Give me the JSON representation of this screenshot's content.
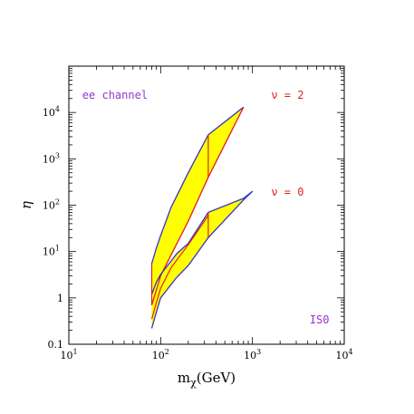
{
  "chart_data": {
    "type": "area",
    "xscale": "log",
    "yscale": "log",
    "xlim": [
      10,
      10000
    ],
    "ylim": [
      0.1,
      100000
    ],
    "xlabel": "m",
    "xlabel_sub": "χ",
    "xlabel_unit": "(GeV)",
    "ylabel": "η",
    "x_tick_labels": [
      {
        "value": 10,
        "base": "10",
        "exp": "1"
      },
      {
        "value": 100,
        "base": "10",
        "exp": "2"
      },
      {
        "value": 1000,
        "base": "10",
        "exp": "3"
      },
      {
        "value": 10000,
        "base": "10",
        "exp": "4"
      }
    ],
    "y_tick_labels": [
      {
        "value": 0.1,
        "base": "0.1",
        "exp": ""
      },
      {
        "value": 1,
        "base": "1",
        "exp": ""
      },
      {
        "value": 10,
        "base": "10",
        "exp": "1"
      },
      {
        "value": 100,
        "base": "10",
        "exp": "2"
      },
      {
        "value": 1000,
        "base": "10",
        "exp": "3"
      },
      {
        "value": 10000,
        "base": "10",
        "exp": "4"
      }
    ],
    "fill_color": "#ffff00",
    "bands": [
      {
        "upper": [
          [
            80,
            5.5
          ],
          [
            90,
            12
          ],
          [
            100,
            22
          ],
          [
            130,
            90
          ],
          [
            200,
            500
          ],
          [
            330,
            3300
          ],
          [
            800,
            13000
          ]
        ],
        "lower": [
          [
            80,
            0.7
          ],
          [
            90,
            1.5
          ],
          [
            100,
            3
          ],
          [
            130,
            8.5
          ],
          [
            200,
            45
          ],
          [
            330,
            400
          ],
          [
            800,
            13000
          ]
        ],
        "upper_color": "#3333cc",
        "lower_color": "#dd2222"
      },
      {
        "upper": [
          [
            80,
            1.2
          ],
          [
            90,
            2.2
          ],
          [
            100,
            3.2
          ],
          [
            150,
            9
          ],
          [
            200,
            15
          ],
          [
            330,
            70
          ],
          [
            800,
            140
          ],
          [
            1000,
            200
          ]
        ],
        "lower": [
          [
            80,
            0.22
          ],
          [
            90,
            0.5
          ],
          [
            100,
            1.0
          ],
          [
            150,
            2.8
          ],
          [
            200,
            5
          ],
          [
            330,
            20
          ],
          [
            800,
            130
          ],
          [
            1000,
            200
          ]
        ],
        "upper_color": "#3333cc",
        "lower_color": "#3333cc"
      }
    ],
    "band_edges": [
      {
        "points": [
          [
            80,
            0.35
          ],
          [
            90,
            0.8
          ],
          [
            100,
            1.6
          ],
          [
            130,
            4.5
          ],
          [
            200,
            14
          ],
          [
            330,
            60
          ]
        ],
        "color": "#dd2222"
      },
      {
        "points": [
          [
            80,
            5.5
          ],
          [
            80,
            0.7
          ]
        ],
        "color": "#dd2222"
      },
      {
        "points": [
          [
            330,
            3300
          ],
          [
            330,
            400
          ]
        ],
        "color": "#dd2222"
      },
      {
        "points": [
          [
            330,
            70
          ],
          [
            330,
            20
          ]
        ],
        "color": "#dd2222"
      }
    ],
    "annotations": [
      {
        "text": "ee channel",
        "x": 14,
        "y": 20000,
        "color": "#9933cc"
      },
      {
        "text": "ν = 2",
        "x": 1600,
        "y": 20000,
        "color": "#dd2222"
      },
      {
        "text": "ν = 0",
        "x": 1600,
        "y": 160,
        "color": "#dd2222"
      },
      {
        "text": "IS0",
        "x": 4200,
        "y": 0.28,
        "color": "#9933cc"
      }
    ]
  }
}
